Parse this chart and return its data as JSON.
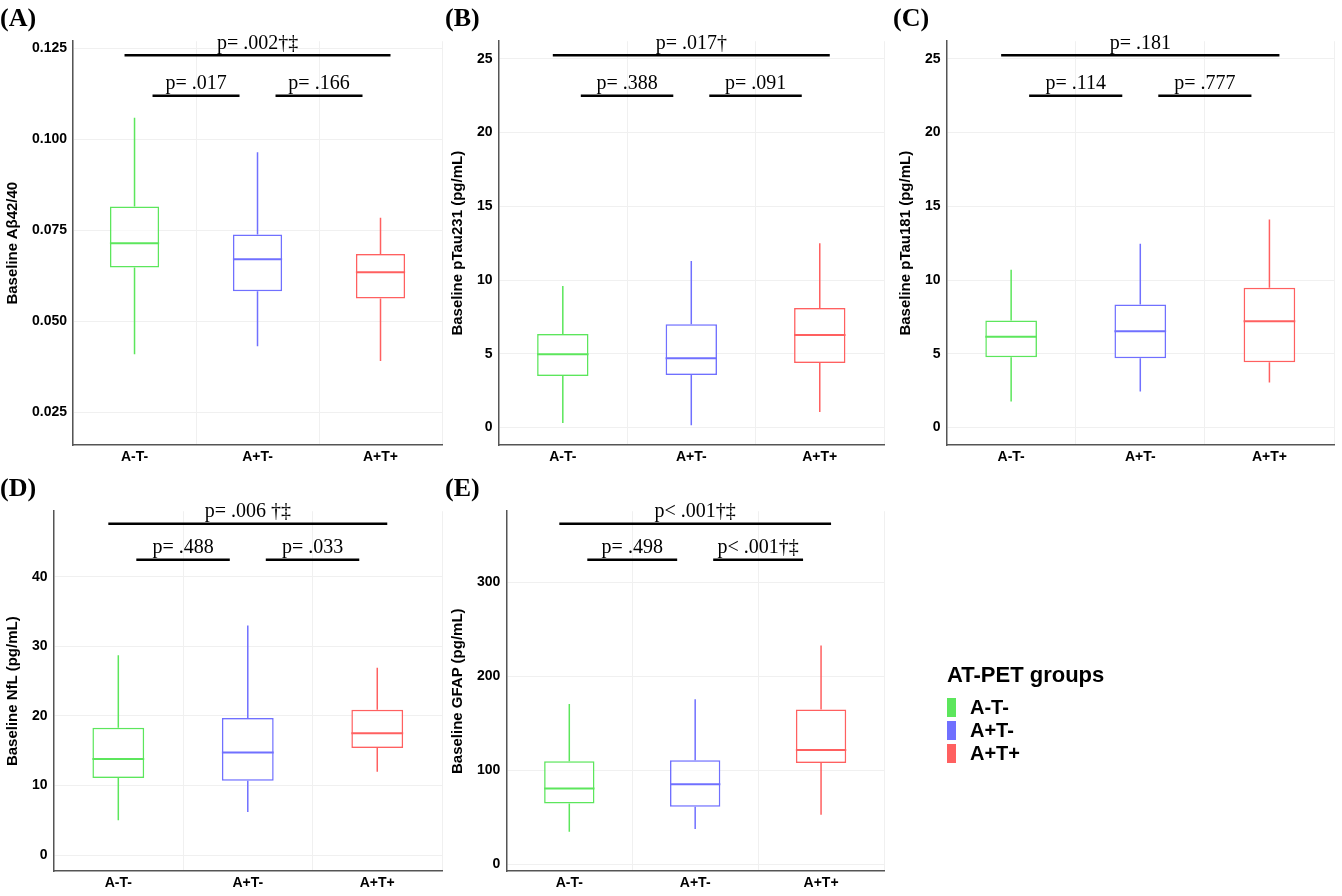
{
  "chart_data": [
    {
      "type": "box",
      "title": "(A)",
      "ylabel": "Baseline Aβ42/40",
      "categories": [
        "A-T-",
        "A+T-",
        "A+T+"
      ],
      "colors": [
        "#5ce65c",
        "#7070ff",
        "#ff6060"
      ],
      "boxes": [
        {
          "low": 0.041,
          "q1": 0.0648,
          "median": 0.0715,
          "q3": 0.0816,
          "high": 0.106
        },
        {
          "low": 0.0432,
          "q1": 0.0583,
          "median": 0.0671,
          "q3": 0.0739,
          "high": 0.0965
        },
        {
          "low": 0.0391,
          "q1": 0.0563,
          "median": 0.0635,
          "q3": 0.0685,
          "high": 0.0785
        }
      ],
      "ylim": [
        0.016,
        0.127
      ],
      "yticks": [
        0.025,
        {
          "value": 0.05,
          "label": "0.050"
        },
        0.075,
        {
          "value": 0.1,
          "label": "0.100"
        },
        0.125
      ],
      "grid": true,
      "annotations": [
        "p= .002†‡",
        "p= .017",
        "p= .166"
      ]
    },
    {
      "type": "box",
      "title": "(B)",
      "ylabel": "Baseline pTau231 (pg/mL)",
      "categories": [
        "A-T-",
        "A+T-",
        "A+T+"
      ],
      "colors": [
        "#5ce65c",
        "#7070ff",
        "#ff6060"
      ],
      "boxes": [
        {
          "low": 0.3,
          "q1": 3.5,
          "median": 4.97,
          "q3": 6.35,
          "high": 9.6
        },
        {
          "low": 0.15,
          "q1": 3.56,
          "median": 4.7,
          "q3": 7.0,
          "high": 11.3
        },
        {
          "low": 1.05,
          "q1": 4.38,
          "median": 6.27,
          "q3": 8.1,
          "high": 12.5
        }
      ],
      "ylim": [
        -1.2,
        26.2
      ],
      "yticks": [
        0,
        5,
        10,
        15,
        20,
        25
      ],
      "grid": true,
      "annotations": [
        "p= .017†",
        "p= .388",
        "p= .091"
      ]
    },
    {
      "type": "box",
      "title": "(C)",
      "ylabel": "Baseline pTau181 (pg/mL)",
      "categories": [
        "A-T-",
        "A+T-",
        "A+T+"
      ],
      "colors": [
        "#5ce65c",
        "#7070ff",
        "#ff6060"
      ],
      "boxes": [
        {
          "low": 1.77,
          "q1": 4.76,
          "median": 6.15,
          "q3": 7.25,
          "high": 10.7
        },
        {
          "low": 2.45,
          "q1": 4.69,
          "median": 6.53,
          "q3": 8.34,
          "high": 12.47
        },
        {
          "low": 3.06,
          "q1": 4.42,
          "median": 7.21,
          "q3": 9.48,
          "high": 14.1
        }
      ],
      "ylim": [
        -1.2,
        26.2
      ],
      "yticks": [
        0,
        5,
        10,
        15,
        20,
        25
      ],
      "grid": true,
      "annotations": [
        "p= .181",
        "p= .114",
        "p= .777"
      ]
    },
    {
      "type": "box",
      "title": "(D)",
      "ylabel": "Baseline NfL (pg/mL)",
      "categories": [
        "A-T-",
        "A+T-",
        "A+T+"
      ],
      "colors": [
        "#5ce65c",
        "#7070ff",
        "#ff6060"
      ],
      "boxes": [
        {
          "low": 5.0,
          "q1": 11.1,
          "median": 13.8,
          "q3": 18.3,
          "high": 28.7
        },
        {
          "low": 6.2,
          "q1": 10.7,
          "median": 14.75,
          "q3": 19.7,
          "high": 33.0
        },
        {
          "low": 12.0,
          "q1": 15.4,
          "median": 17.5,
          "q3": 20.9,
          "high": 26.9
        }
      ],
      "ylim": [
        -2.3,
        49.4
      ],
      "yticks": [
        0,
        10,
        20,
        30,
        40
      ],
      "grid": true,
      "annotations": [
        "p= .006 †‡",
        "p= .488",
        "p= .033"
      ]
    },
    {
      "type": "box",
      "title": "(E)",
      "ylabel": "Baseline GFAP (pg/mL)",
      "categories": [
        "A-T-",
        "A+T-",
        "A+T+"
      ],
      "series": [
        {
          "name": "A-T-",
          "color": "#5ce65c",
          "boxes": [
            {
              "low": 35,
              "q1": 65,
              "median": 81,
              "q3": 110,
              "high": 171
            },
            null,
            null
          ]
        },
        {
          "name": "A+T-",
          "color": "#7070ff",
          "boxes": [
            null,
            {
              "low": 38,
              "q1": 61.5,
              "median": 85.5,
              "q3": 111,
              "high": 176
            },
            null
          ]
        },
        {
          "name": "A+T+",
          "color": "#ff6060",
          "boxes": [
            null,
            null,
            {
              "low": 53,
              "q1": 108,
              "median": 122,
              "q3": 165,
              "high": 233
            }
          ]
        }
      ],
      "ylim": [
        -7,
        376
      ],
      "yticks": [
        0,
        100,
        200,
        300
      ],
      "grid": true,
      "annotations": [
        "p< .001†‡",
        "p= .498",
        "p< .001†‡"
      ],
      "legend": "right",
      "legend_title": "AT-PET groups"
    }
  ]
}
